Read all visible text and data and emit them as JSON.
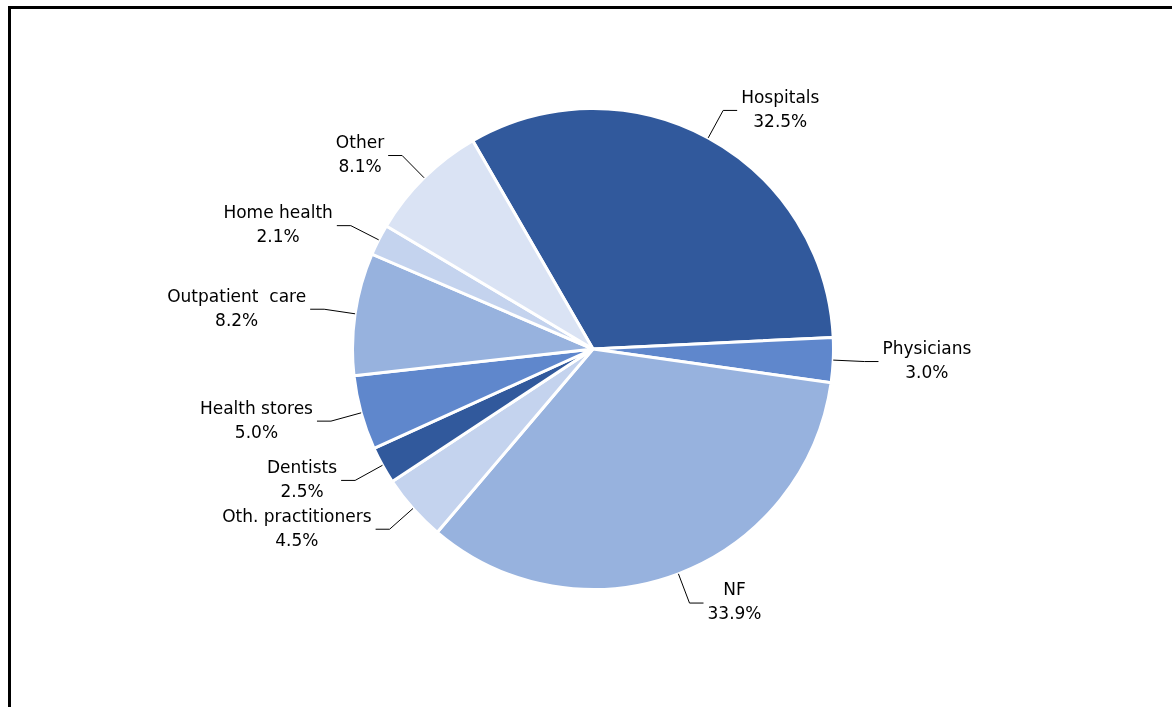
{
  "chart_data": {
    "type": "pie",
    "categories": [
      "Hospitals",
      "Physicians",
      "NF",
      "Oth. practitioners",
      "Dentists",
      "Health stores",
      "Outpatient  care",
      "Home health",
      "Other"
    ],
    "values": [
      32.5,
      3.0,
      33.9,
      4.5,
      2.5,
      5.0,
      8.2,
      2.1,
      8.1
    ],
    "value_labels": [
      "32.5%",
      "3.0%",
      "33.9%",
      "4.5%",
      "2.5%",
      "5.0%",
      "8.2%",
      "2.1%",
      "8.1%"
    ],
    "colors": [
      "#31599c",
      "#5f87cc",
      "#97b2de",
      "#c4d3ee",
      "#31599c",
      "#5f87cc",
      "#97b2de",
      "#c4d3ee",
      "#dae3f4"
    ],
    "legend": false
  }
}
